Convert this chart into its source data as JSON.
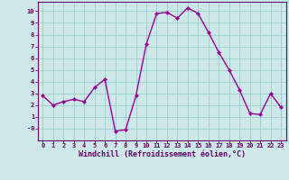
{
  "x": [
    0,
    1,
    2,
    3,
    4,
    5,
    6,
    7,
    8,
    9,
    10,
    11,
    12,
    13,
    14,
    15,
    16,
    17,
    18,
    19,
    20,
    21,
    22,
    23
  ],
  "y": [
    2.8,
    2.0,
    2.3,
    2.5,
    2.3,
    3.5,
    4.2,
    -0.2,
    -0.1,
    2.8,
    7.2,
    9.8,
    9.9,
    9.4,
    10.3,
    9.8,
    8.2,
    6.5,
    5.0,
    3.3,
    1.3,
    1.2,
    3.0,
    1.8
  ],
  "line_color": "#990099",
  "marker": "D",
  "marker_size": 2.0,
  "bg_color": "#cce8e8",
  "grid_color": "#99cccc",
  "xlabel": "Windchill (Refroidissement éolien,°C)",
  "xlabel_color": "#660066",
  "ylim": [
    -1,
    10.8
  ],
  "xlim": [
    -0.5,
    23.5
  ],
  "yticks": [
    0,
    1,
    2,
    3,
    4,
    5,
    6,
    7,
    8,
    9,
    10
  ],
  "xticks": [
    0,
    1,
    2,
    3,
    4,
    5,
    6,
    7,
    8,
    9,
    10,
    11,
    12,
    13,
    14,
    15,
    16,
    17,
    18,
    19,
    20,
    21,
    22,
    23
  ],
  "tick_color": "#660066",
  "tick_label_color": "#660066",
  "spine_color": "#660066",
  "tick_fontsize": 5.0,
  "xlabel_fontsize": 6.0,
  "linewidth": 1.0
}
